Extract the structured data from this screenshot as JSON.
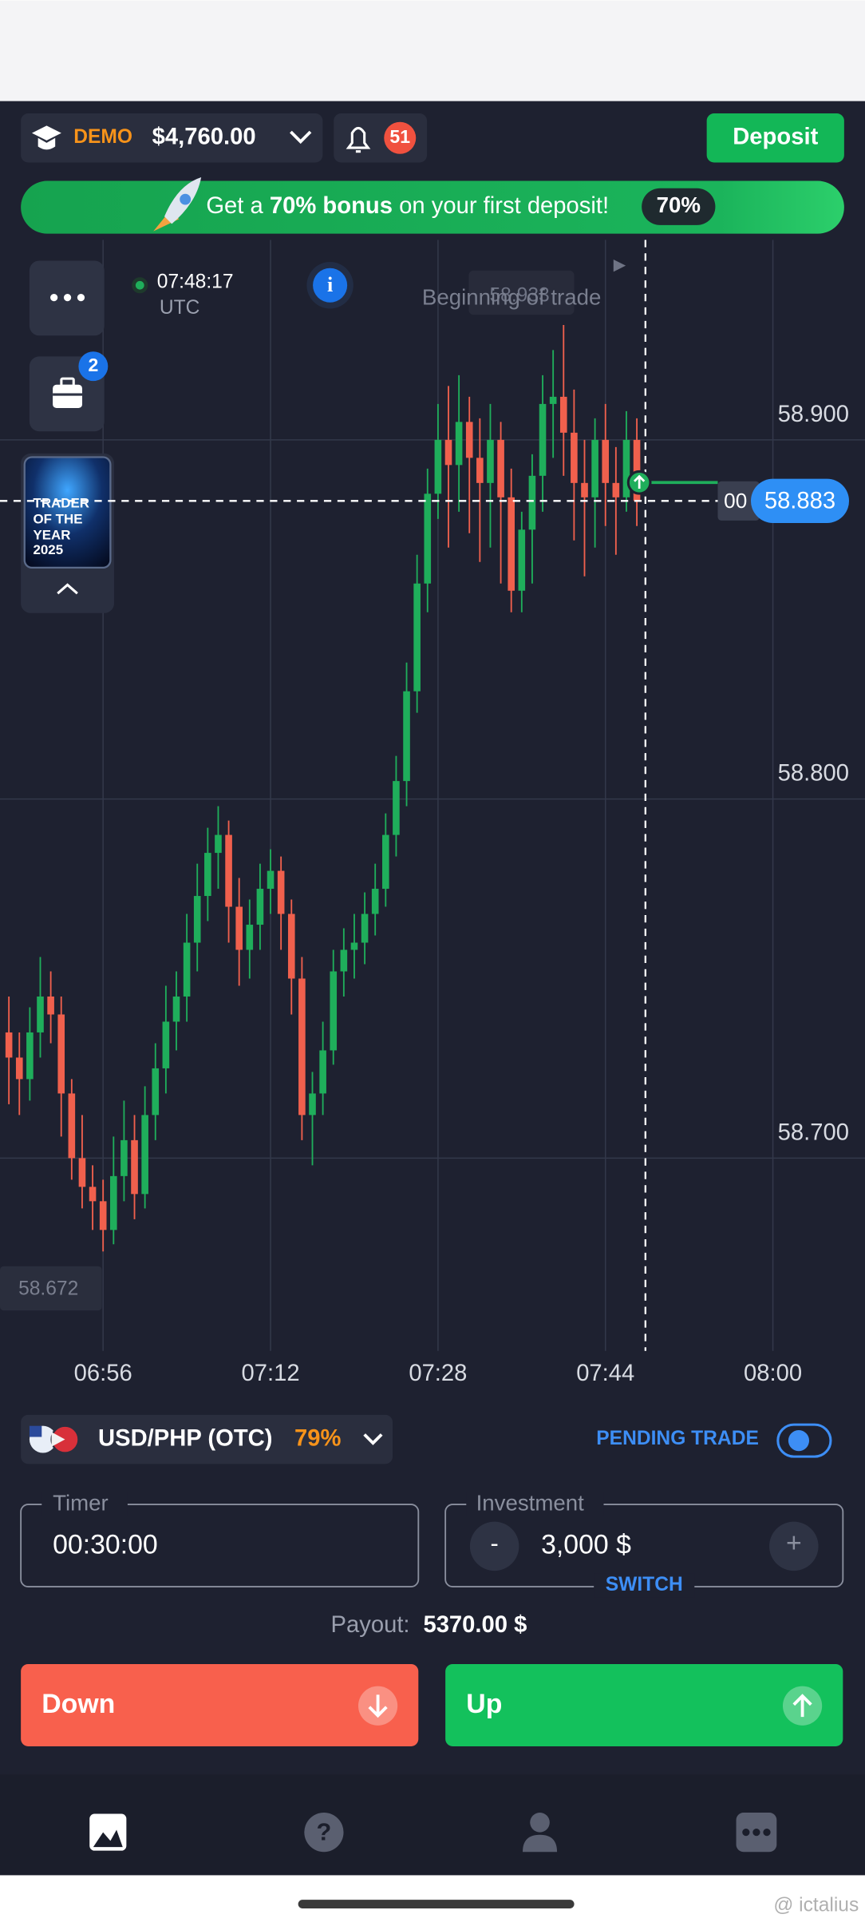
{
  "header": {
    "account_type": "DEMO",
    "balance": "$4,760.00",
    "notifications": "51",
    "deposit": "Deposit"
  },
  "banner": {
    "text_before": "Get a ",
    "bold": "70% bonus",
    "text_after": " on your first deposit!",
    "badge": "70%"
  },
  "chart": {
    "type": "candlestick",
    "time": "07:48:17",
    "timezone": "UTC",
    "annotation": "Beginning of trade",
    "start_price_label": "58.933",
    "side_badge": "2",
    "award": [
      "TRADER",
      "OF THE",
      "YEAR",
      "2025"
    ],
    "price_prefix": "00",
    "current_price": 58.883,
    "low_label": "58.672",
    "up_color": "#1fae5b",
    "down_color": "#f0604d",
    "xlim": [
      406.15,
      488.8
    ],
    "xticks": [
      {
        "value": 416,
        "label": "06:56"
      },
      {
        "value": 432,
        "label": "07:12"
      },
      {
        "value": 448,
        "label": "07:28"
      },
      {
        "value": 464,
        "label": "07:44"
      },
      {
        "value": 480,
        "label": "08:00"
      }
    ],
    "ylim": [
      58.6463,
      58.9557
    ],
    "yticks": [
      {
        "value": 58.7,
        "label": "58.700"
      },
      {
        "value": 58.8,
        "label": "58.800"
      },
      {
        "value": 58.9,
        "label": "58.900"
      }
    ],
    "candles": [
      [
        407,
        58.735,
        58.745,
        58.715,
        58.728
      ],
      [
        408,
        58.728,
        58.735,
        58.712,
        58.722
      ],
      [
        409,
        58.722,
        58.742,
        58.716,
        58.735
      ],
      [
        410,
        58.735,
        58.756,
        58.728,
        58.745
      ],
      [
        411,
        58.745,
        58.752,
        58.732,
        58.74
      ],
      [
        412,
        58.74,
        58.745,
        58.706,
        58.718
      ],
      [
        413,
        58.718,
        58.722,
        58.694,
        58.7
      ],
      [
        414,
        58.7,
        58.712,
        58.686,
        58.692
      ],
      [
        415,
        58.692,
        58.698,
        58.68,
        58.688
      ],
      [
        416,
        58.688,
        58.694,
        58.674,
        58.68
      ],
      [
        417,
        58.68,
        58.706,
        58.676,
        58.695
      ],
      [
        418,
        58.695,
        58.716,
        58.688,
        58.705
      ],
      [
        419,
        58.705,
        58.712,
        58.683,
        58.69
      ],
      [
        420,
        58.69,
        58.72,
        58.686,
        58.712
      ],
      [
        421,
        58.712,
        58.732,
        58.705,
        58.725
      ],
      [
        422,
        58.725,
        58.748,
        58.718,
        58.738
      ],
      [
        423,
        58.738,
        58.752,
        58.73,
        58.745
      ],
      [
        424,
        58.745,
        58.768,
        58.738,
        58.76
      ],
      [
        425,
        58.76,
        58.782,
        58.752,
        58.773
      ],
      [
        426,
        58.773,
        58.792,
        58.766,
        58.785
      ],
      [
        427,
        58.785,
        58.798,
        58.775,
        58.79
      ],
      [
        428,
        58.79,
        58.794,
        58.76,
        58.77
      ],
      [
        429,
        58.77,
        58.778,
        58.748,
        58.758
      ],
      [
        430,
        58.758,
        58.772,
        58.75,
        58.765
      ],
      [
        431,
        58.765,
        58.782,
        58.758,
        58.775
      ],
      [
        432,
        58.775,
        58.786,
        58.768,
        58.78
      ],
      [
        433,
        58.78,
        58.784,
        58.758,
        58.768
      ],
      [
        434,
        58.768,
        58.772,
        58.74,
        58.75
      ],
      [
        435,
        58.75,
        58.756,
        58.705,
        58.712
      ],
      [
        436,
        58.712,
        58.724,
        58.698,
        58.718
      ],
      [
        437,
        58.718,
        58.738,
        58.712,
        58.73
      ],
      [
        438,
        58.73,
        58.758,
        58.726,
        58.752
      ],
      [
        439,
        58.752,
        58.764,
        58.745,
        58.758
      ],
      [
        440,
        58.758,
        58.768,
        58.75,
        58.76
      ],
      [
        441,
        58.76,
        58.774,
        58.754,
        58.768
      ],
      [
        442,
        58.768,
        58.782,
        58.762,
        58.775
      ],
      [
        443,
        58.775,
        58.796,
        58.77,
        58.79
      ],
      [
        444,
        58.79,
        58.812,
        58.784,
        58.805
      ],
      [
        445,
        58.805,
        58.838,
        58.798,
        58.83
      ],
      [
        446,
        58.83,
        58.868,
        58.824,
        58.86
      ],
      [
        447,
        58.86,
        58.892,
        58.852,
        58.885
      ],
      [
        448,
        58.885,
        58.91,
        58.878,
        58.9
      ],
      [
        449,
        58.9,
        58.915,
        58.87,
        58.893
      ],
      [
        450,
        58.893,
        58.918,
        58.88,
        58.905
      ],
      [
        451,
        58.905,
        58.912,
        58.874,
        58.895
      ],
      [
        452,
        58.895,
        58.906,
        58.866,
        58.888
      ],
      [
        453,
        58.888,
        58.91,
        58.87,
        58.9
      ],
      [
        454,
        58.9,
        58.905,
        58.86,
        58.884
      ],
      [
        455,
        58.884,
        58.892,
        58.852,
        58.858
      ],
      [
        456,
        58.858,
        58.88,
        58.852,
        58.875
      ],
      [
        457,
        58.875,
        58.896,
        58.86,
        58.89
      ],
      [
        458,
        58.89,
        58.918,
        58.88,
        58.91
      ],
      [
        459,
        58.91,
        58.925,
        58.895,
        58.912
      ],
      [
        460,
        58.912,
        58.932,
        58.89,
        58.902
      ],
      [
        461,
        58.902,
        58.914,
        58.872,
        58.888
      ],
      [
        462,
        58.888,
        58.9,
        58.862,
        58.884
      ],
      [
        463,
        58.884,
        58.906,
        58.87,
        58.9
      ],
      [
        464,
        58.9,
        58.91,
        58.876,
        58.888
      ],
      [
        465,
        58.888,
        58.898,
        58.868,
        58.884
      ],
      [
        466,
        58.884,
        58.908,
        58.88,
        58.9
      ],
      [
        467,
        58.9,
        58.906,
        58.876,
        58.883
      ]
    ]
  },
  "asset": {
    "pair": "USD/PHP (OTC)",
    "payout_percent": "79%",
    "pending": "PENDING TRADE"
  },
  "timer": {
    "label": "Timer",
    "value": "00:30:00"
  },
  "investment": {
    "label": "Investment",
    "minus": "-",
    "value": "3,000 $",
    "plus": "+",
    "switch": "SWITCH"
  },
  "payout": {
    "label": "Payout:",
    "value": "5370.00 $"
  },
  "buttons": {
    "down": "Down",
    "up": "Up"
  },
  "watermark": "@ ictalius"
}
